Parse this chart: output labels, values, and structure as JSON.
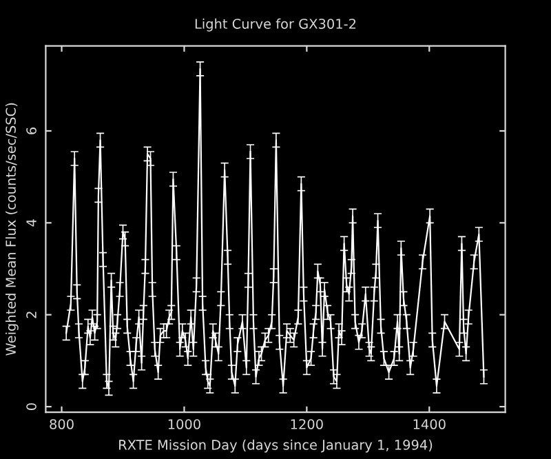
{
  "chart_data": {
    "type": "line",
    "title": "Light Curve for GX301-2",
    "xlabel": "RXTE Mission Day (days since January 1, 1994)",
    "ylabel": "Weighted Mean Flux (counts/sec/SSC)",
    "x": [
      807.5,
      815,
      821,
      825,
      828,
      834,
      838,
      843,
      846.5,
      850,
      854,
      858,
      860,
      863,
      867.5,
      873.5,
      877,
      881,
      884,
      888,
      891,
      895,
      900,
      903.5,
      907,
      912,
      917,
      921.5,
      926,
      930.5,
      933.5,
      936.5,
      940,
      945,
      948,
      952,
      957.5,
      961,
      966.5,
      971,
      975.5,
      979,
      982,
      987.5,
      993,
      997,
      1002,
      1006,
      1011,
      1015,
      1020,
      1026,
      1030,
      1035,
      1038.5,
      1042,
      1047,
      1051,
      1056,
      1060,
      1066,
      1071,
      1074,
      1077.5,
      1083,
      1087,
      1095,
      1101.5,
      1104.5,
      1108,
      1113,
      1117,
      1122,
      1126,
      1132,
      1137.5,
      1143,
      1146,
      1150,
      1155.5,
      1161.5,
      1167.5,
      1173,
      1179,
      1186,
      1191,
      1195,
      1200,
      1207,
      1211,
      1215,
      1218,
      1222,
      1225.5,
      1229,
      1234,
      1239,
      1244,
      1249,
      1252.5,
      1257,
      1261,
      1265,
      1269,
      1273,
      1275,
      1279,
      1285,
      1290,
      1296,
      1302,
      1305,
      1310,
      1313,
      1316,
      1321,
      1326,
      1334,
      1342.5,
      1348,
      1351,
      1354,
      1358,
      1363,
      1369,
      1374,
      1389,
      1401,
      1405,
      1412,
      1425,
      1449,
      1453,
      1456,
      1460,
      1464,
      1473,
      1481,
      1489
    ],
    "series": [
      {
        "color": "#ffffff",
        "values": [
          1.6,
          2.25,
          5.4,
          2.5,
          1.65,
          0.55,
          0.85,
          1.75,
          1.5,
          1.95,
          1.6,
          1.85,
          4.6,
          5.8,
          3.2,
          0.55,
          0.4,
          2.75,
          1.6,
          1.45,
          1.85,
          2.55,
          3.8,
          3.65,
          1.75,
          1.05,
          0.55,
          1.35,
          1.95,
          0.95,
          2.05,
          3.05,
          5.5,
          5.4,
          2.55,
          1.25,
          0.75,
          1.55,
          1.65,
          1.65,
          1.95,
          2.05,
          4.95,
          3.35,
          1.25,
          1.65,
          1.45,
          1.05,
          1.95,
          1.25,
          2.65,
          7.35,
          2.25,
          0.85,
          0.55,
          0.45,
          1.65,
          1.45,
          1.15,
          2.35,
          5.15,
          3.25,
          1.85,
          0.75,
          0.45,
          1.35,
          1.85,
          0.85,
          2.75,
          5.55,
          1.85,
          0.65,
          1.05,
          1.15,
          1.45,
          1.55,
          1.85,
          2.85,
          5.8,
          1.4,
          0.45,
          1.65,
          1.55,
          1.45,
          1.95,
          4.85,
          2.45,
          0.85,
          1.05,
          1.65,
          2.05,
          2.95,
          2.65,
          1.25,
          2.55,
          2.05,
          1.85,
          0.65,
          0.55,
          1.65,
          1.5,
          3.55,
          2.65,
          2.45,
          3.05,
          4.15,
          1.85,
          1.4,
          1.65,
          2.45,
          1.25,
          1.15,
          2.45,
          2.95,
          4.05,
          1.75,
          1.05,
          0.75,
          1.05,
          1.85,
          1.15,
          3.45,
          2.35,
          1.85,
          0.85,
          1.25,
          3.15,
          4.15,
          1.45,
          0.45,
          1.85,
          1.25,
          3.55,
          1.75,
          1.15,
          1.95,
          3.15,
          3.75,
          0.65
        ],
        "errors": [
          0.15,
          0.15,
          0.15,
          0.15,
          0.15,
          0.15,
          0.15,
          0.15,
          0.15,
          0.15,
          0.15,
          0.15,
          0.15,
          0.15,
          0.15,
          0.15,
          0.15,
          0.15,
          0.15,
          0.15,
          0.15,
          0.15,
          0.15,
          0.15,
          0.15,
          0.15,
          0.15,
          0.15,
          0.15,
          0.15,
          0.15,
          0.15,
          0.15,
          0.15,
          0.15,
          0.15,
          0.15,
          0.15,
          0.15,
          0.15,
          0.15,
          0.15,
          0.15,
          0.15,
          0.15,
          0.15,
          0.15,
          0.15,
          0.15,
          0.15,
          0.15,
          0.15,
          0.15,
          0.15,
          0.15,
          0.15,
          0.15,
          0.15,
          0.15,
          0.15,
          0.15,
          0.15,
          0.15,
          0.15,
          0.15,
          0.15,
          0.15,
          0.15,
          0.15,
          0.15,
          0.15,
          0.15,
          0.15,
          0.15,
          0.15,
          0.15,
          0.15,
          0.15,
          0.15,
          0.15,
          0.15,
          0.15,
          0.15,
          0.15,
          0.15,
          0.15,
          0.15,
          0.15,
          0.15,
          0.15,
          0.15,
          0.15,
          0.15,
          0.15,
          0.15,
          0.15,
          0.15,
          0.15,
          0.15,
          0.15,
          0.15,
          0.15,
          0.15,
          0.15,
          0.15,
          0.15,
          0.15,
          0.15,
          0.15,
          0.15,
          0.15,
          0.15,
          0.15,
          0.15,
          0.15,
          0.15,
          0.15,
          0.15,
          0.15,
          0.15,
          0.15,
          0.15,
          0.15,
          0.15,
          0.15,
          0.15,
          0.15,
          0.15,
          0.15,
          0.15,
          0.15,
          0.15,
          0.15,
          0.15,
          0.15,
          0.15,
          0.15,
          0.15,
          0.15
        ]
      }
    ],
    "xlim": [
      774,
      1524
    ],
    "ylim": [
      -0.12,
      7.85
    ],
    "xticks": [
      800,
      1000,
      1200,
      1400
    ],
    "yticks": [
      0,
      2,
      4,
      6
    ],
    "grid": false,
    "legend": false,
    "marker": "none",
    "line_style": "solid"
  }
}
